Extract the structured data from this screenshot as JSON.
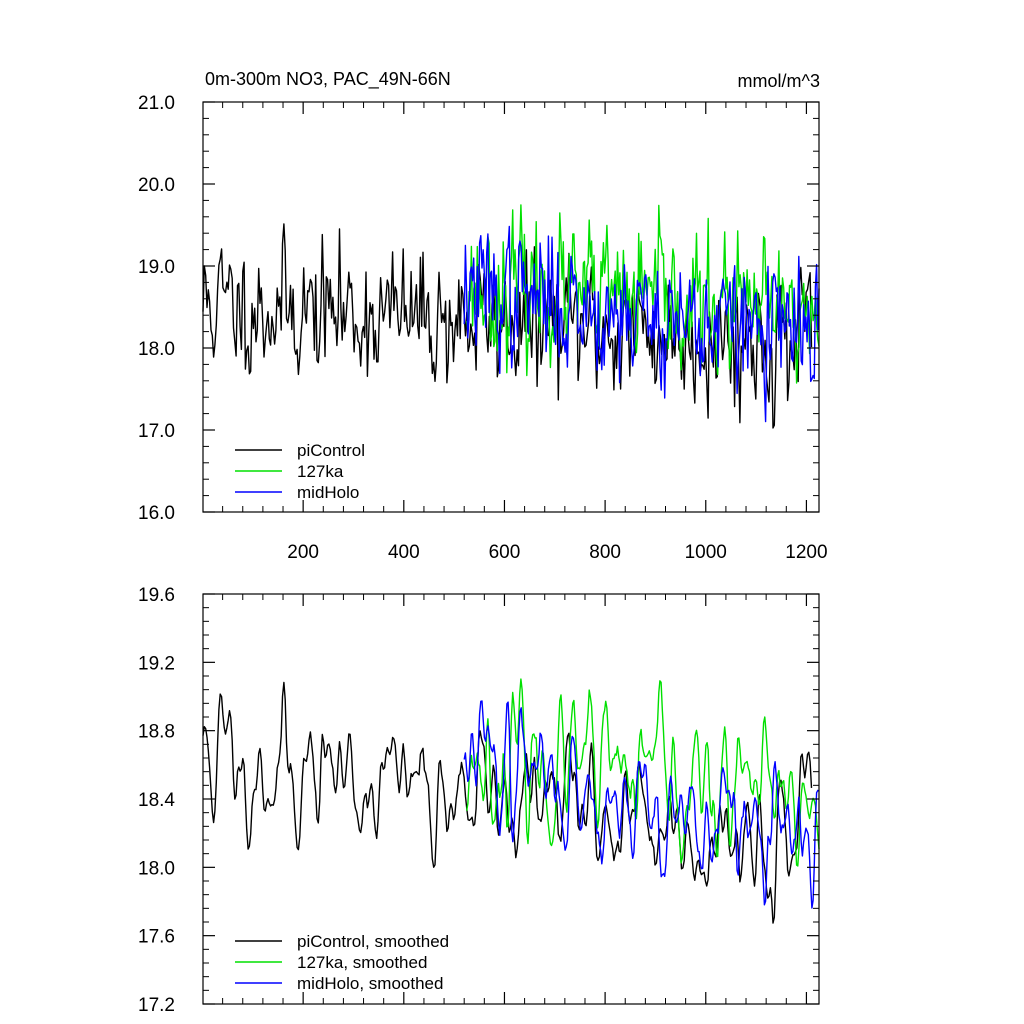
{
  "chart_data": [
    {
      "type": "line",
      "title": "0m-300m NO3, PAC_49N-66N",
      "units": "mmol/m^3",
      "xlim": [
        1,
        1225
      ],
      "ylim": [
        16.0,
        21.0
      ],
      "x_ticks": [
        200,
        400,
        600,
        800,
        1000,
        1200
      ],
      "x_tick_labels": [
        "200",
        "400",
        "600",
        "800",
        "1000",
        "1200"
      ],
      "y_ticks": [
        16.0,
        17.0,
        18.0,
        19.0,
        20.0,
        21.0
      ],
      "y_tick_labels": [
        "16.0",
        "17.0",
        "18.0",
        "19.0",
        "20.0",
        "21.0"
      ],
      "legend_position": "bottom-left",
      "series": [
        {
          "name": "piControl",
          "color": "#000000",
          "x_start": 1,
          "x_end": 1210,
          "mean": 18.55,
          "end_mean": 18.05,
          "sd": 0.38,
          "n": 460,
          "seed": 11,
          "smooth": 0
        },
        {
          "name": "127ka",
          "color": "#00e000",
          "x_start": 525,
          "x_end": 1225,
          "mean": 18.75,
          "end_mean": 18.4,
          "sd": 0.38,
          "n": 300,
          "seed": 23,
          "smooth": 0
        },
        {
          "name": "midHolo",
          "color": "#0000ff",
          "x_start": 520,
          "x_end": 1225,
          "mean": 18.7,
          "end_mean": 18.15,
          "sd": 0.37,
          "n": 300,
          "seed": 37,
          "smooth": 0
        }
      ]
    },
    {
      "type": "line",
      "title": "",
      "units": "",
      "xlim": [
        1,
        1225
      ],
      "ylim": [
        17.2,
        19.6
      ],
      "x_ticks": [
        200,
        400,
        600,
        800,
        1000,
        1200
      ],
      "x_tick_labels": [],
      "y_ticks": [
        17.2,
        17.6,
        18.0,
        18.4,
        18.8,
        19.2,
        19.6
      ],
      "y_tick_labels": [
        "17.2",
        "17.6",
        "18.0",
        "18.4",
        "18.8",
        "19.2",
        "19.6"
      ],
      "legend_position": "bottom-left",
      "series": [
        {
          "name": "piControl, smoothed",
          "color": "#000000",
          "x_start": 1,
          "x_end": 1210,
          "mean": 18.65,
          "end_mean": 18.15,
          "sd": 0.3,
          "n": 460,
          "seed": 11,
          "smooth": 1
        },
        {
          "name": "127ka, smoothed",
          "color": "#00e000",
          "x_start": 525,
          "x_end": 1225,
          "mean": 18.65,
          "end_mean": 18.35,
          "sd": 0.3,
          "n": 300,
          "seed": 23,
          "smooth": 1
        },
        {
          "name": "midHolo, smoothed",
          "color": "#0000ff",
          "x_start": 520,
          "x_end": 1225,
          "mean": 18.65,
          "end_mean": 18.1,
          "sd": 0.28,
          "n": 300,
          "seed": 37,
          "smooth": 1
        }
      ]
    }
  ]
}
